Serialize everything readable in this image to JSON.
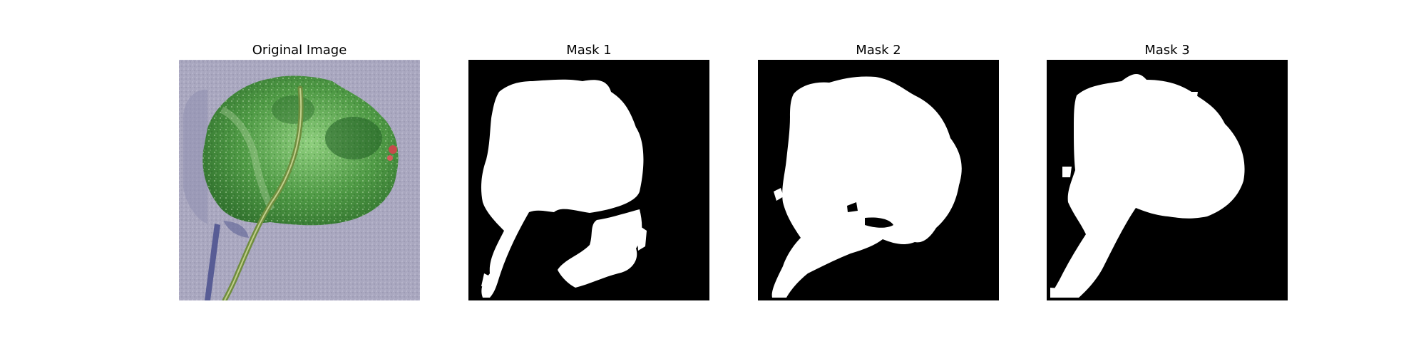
{
  "figure": {
    "panels": [
      {
        "title": "Original Image",
        "kind": "photo",
        "subject": "leaf"
      },
      {
        "title": "Mask 1",
        "kind": "mask"
      },
      {
        "title": "Mask 2",
        "kind": "mask"
      },
      {
        "title": "Mask 3",
        "kind": "mask"
      }
    ],
    "colors": {
      "background": "#ffffff",
      "mask_foreground": "#ffffff",
      "mask_background": "#000000",
      "leaf_green": "#3f8a3a",
      "ground_gray": "#a9a7bf",
      "shadow": "#6b6fa6"
    }
  }
}
